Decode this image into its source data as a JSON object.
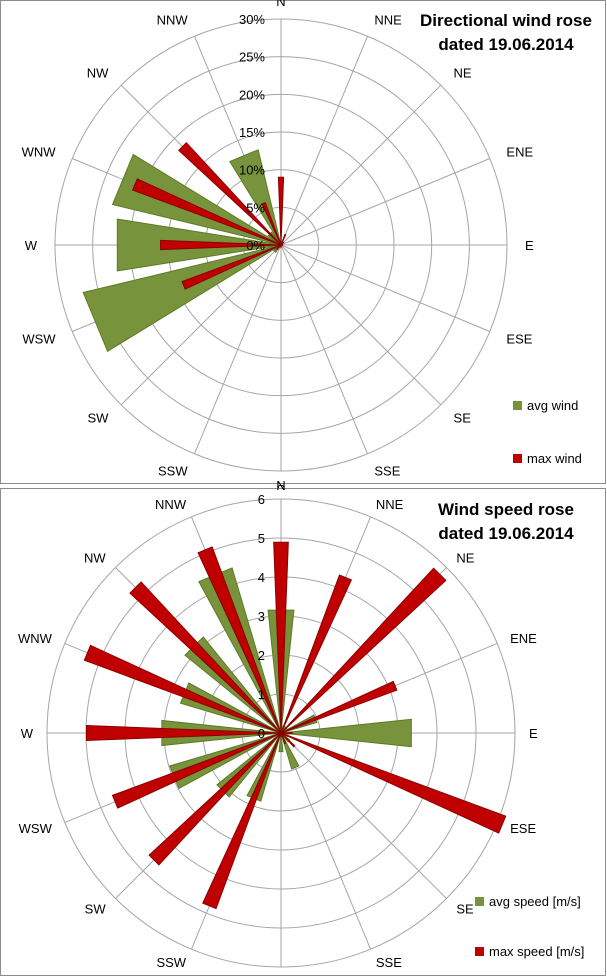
{
  "colors": {
    "avg": "#77933c",
    "avg_edge": "#5e7a26",
    "max": "#c00000",
    "max_edge": "#8b0000",
    "grid": "#a6a6a6"
  },
  "chart_data": [
    {
      "type": "radar",
      "title_line1": "Directional wind rose",
      "title_line2": "dated 19.06.2014",
      "directions": [
        "N",
        "NNE",
        "NE",
        "ENE",
        "E",
        "ESE",
        "SE",
        "SSE",
        "S",
        "SSW",
        "SW",
        "WSW",
        "W",
        "WNW",
        "NW",
        "NNW"
      ],
      "ticks": [
        "0%",
        "5%",
        "10%",
        "15%",
        "20%",
        "25%",
        "30%"
      ],
      "rmax": 30,
      "series": [
        {
          "name": "avg wind",
          "values": [
            0.5,
            0.3,
            0.2,
            0.1,
            0.1,
            0.1,
            0.1,
            0.1,
            0.3,
            0.4,
            1.2,
            27,
            22,
            23,
            2.1,
            13
          ]
        },
        {
          "name": "max wind",
          "values": [
            9,
            1.5,
            0.5,
            0.2,
            0.2,
            0.2,
            0.1,
            0.1,
            0.2,
            0.2,
            0.8,
            14,
            16,
            21,
            18.5,
            6
          ]
        }
      ],
      "legend": [
        "avg wind",
        "max wind"
      ]
    },
    {
      "type": "radar",
      "title_line1": "Wind speed rose",
      "title_line2": "dated 19.06.2014",
      "directions": [
        "N",
        "NNE",
        "NE",
        "ENE",
        "E",
        "ESE",
        "SE",
        "SSE",
        "S",
        "SSW",
        "SW",
        "WSW",
        "W",
        "WNW",
        "NW",
        "NNW"
      ],
      "ticks": [
        "0",
        "1",
        "2",
        "3",
        "4",
        "5",
        "6"
      ],
      "rmax": 6.25,
      "series": [
        {
          "name": "avg speed [m/s]",
          "values": [
            3.3,
            0.2,
            0.2,
            1.0,
            3.5,
            0.2,
            0.3,
            1.0,
            0.5,
            1.9,
            2.2,
            3.1,
            3.2,
            2.8,
            3.3,
            4.6
          ]
        },
        {
          "name": "max speed [m/s]",
          "values": [
            5.1,
            4.5,
            6.0,
            3.3,
            0.3,
            6.4,
            0.5,
            0.3,
            0.1,
            5.0,
            4.8,
            4.8,
            5.2,
            5.6,
            5.5,
            5.3
          ]
        }
      ],
      "legend": [
        "avg speed [m/s]",
        "max speed [m/s]"
      ]
    }
  ]
}
